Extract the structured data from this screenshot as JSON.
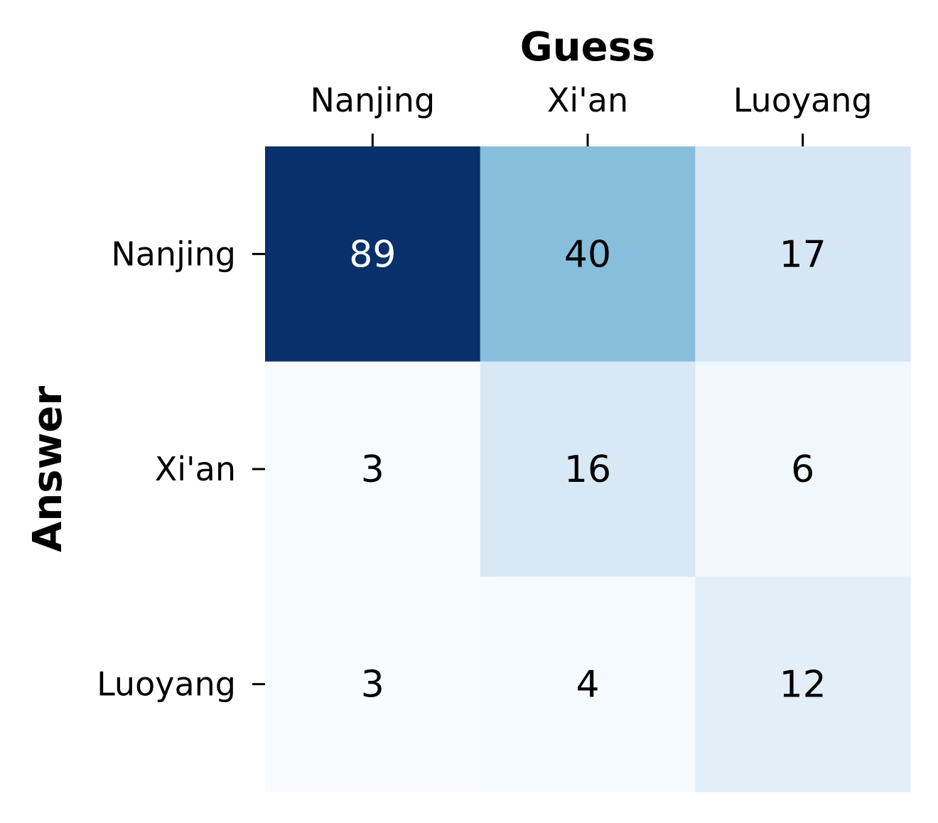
{
  "chart_data": {
    "type": "heatmap",
    "title": "",
    "xlabel": "Guess",
    "ylabel": "Answer",
    "x_categories": [
      "Nanjing",
      "Xi'an",
      "Luoyang"
    ],
    "y_categories": [
      "Nanjing",
      "Xi'an",
      "Luoyang"
    ],
    "values": [
      [
        89,
        40,
        17
      ],
      [
        3,
        16,
        6
      ],
      [
        3,
        4,
        12
      ]
    ],
    "x_axis_position": "top",
    "colormap": "Blues",
    "colorbar": false,
    "grid": false,
    "colors": {
      "low": "#f7fbff",
      "high": "#08306b",
      "text_dark": "#000000",
      "text_light": "#ffffff"
    }
  }
}
